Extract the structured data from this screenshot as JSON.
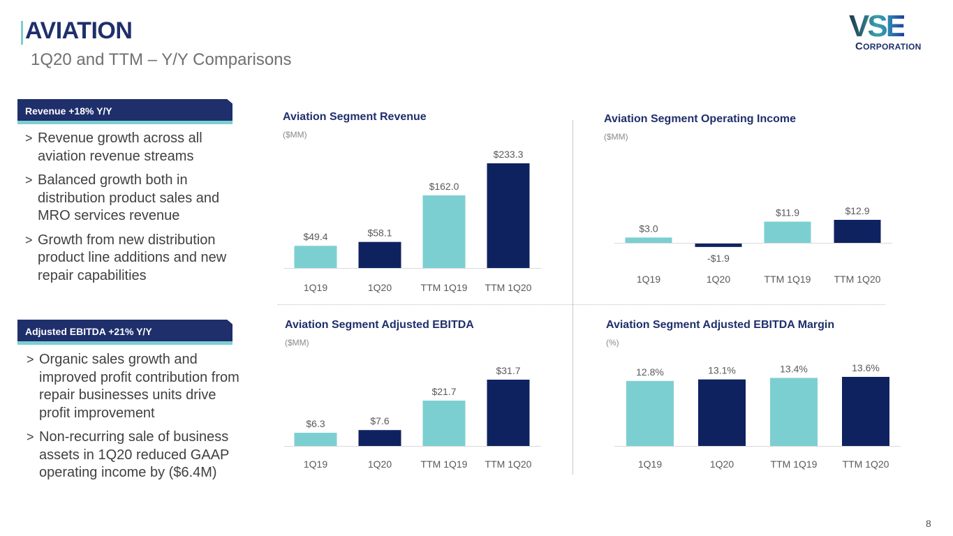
{
  "header": {
    "title": "AVIATION",
    "subtitle": "1Q20 and TTM – Y/Y Comparisons"
  },
  "logo": {
    "main": "VSE",
    "sub_first": "C",
    "sub_rest": "ORPORATION"
  },
  "colors": {
    "navy": "#1f2f6b",
    "bar_dark": "#0f2260",
    "bar_light": "#7ccfd1",
    "accent": "#7ccfd1"
  },
  "sections": [
    {
      "header": "Revenue +18% Y/Y",
      "bullets": [
        "Revenue growth across all aviation revenue streams",
        "Balanced growth both in distribution product sales and MRO services revenue",
        "Growth from new distribution product line additions and new repair capabilities"
      ]
    },
    {
      "header": "Adjusted EBITDA +21% Y/Y",
      "bullets": [
        "Organic sales growth and improved profit contribution from repair businesses units drive profit improvement",
        "Non-recurring sale of business assets in 1Q20 reduced GAAP operating income by ($6.4M)"
      ]
    }
  ],
  "bullet_marker": ">",
  "chart_data": [
    {
      "type": "bar",
      "title": "Aviation Segment Revenue",
      "unit": "($MM)",
      "categories": [
        "1Q19",
        "1Q20",
        "TTM 1Q19",
        "TTM 1Q20"
      ],
      "values": [
        49.4,
        58.1,
        162.0,
        233.3
      ],
      "labels": [
        "$49.4",
        "$58.1",
        "$162.0",
        "$233.3"
      ],
      "colors": [
        "light",
        "dark",
        "light",
        "dark"
      ],
      "xlabel": "",
      "ylabel": "",
      "ylim": [
        0,
        233.3
      ],
      "grid": false,
      "legend": "none"
    },
    {
      "type": "bar",
      "title": "Aviation Segment Operating Income",
      "unit": "($MM)",
      "categories": [
        "1Q19",
        "1Q20",
        "TTM 1Q19",
        "TTM 1Q20"
      ],
      "values": [
        3.0,
        -1.9,
        11.9,
        12.9
      ],
      "labels": [
        "$3.0",
        "-$1.9",
        "$11.9",
        "$12.9"
      ],
      "colors": [
        "light",
        "dark",
        "light",
        "dark"
      ],
      "xlabel": "",
      "ylabel": "",
      "ylim": [
        -1.9,
        12.9
      ],
      "grid": false,
      "legend": "none"
    },
    {
      "type": "bar",
      "title": "Aviation Segment Adjusted EBITDA",
      "unit": "($MM)",
      "categories": [
        "1Q19",
        "1Q20",
        "TTM 1Q19",
        "TTM 1Q20"
      ],
      "values": [
        6.3,
        7.6,
        21.7,
        31.7
      ],
      "labels": [
        "$6.3",
        "$7.6",
        "$21.7",
        "$31.7"
      ],
      "colors": [
        "light",
        "dark",
        "light",
        "dark"
      ],
      "xlabel": "",
      "ylabel": "",
      "ylim": [
        0,
        31.7
      ],
      "grid": false,
      "legend": "none"
    },
    {
      "type": "bar",
      "title": "Aviation Segment Adjusted EBITDA Margin",
      "unit": "(%)",
      "categories": [
        "1Q19",
        "1Q20",
        "TTM 1Q19",
        "TTM 1Q20"
      ],
      "values": [
        12.8,
        13.1,
        13.4,
        13.6
      ],
      "labels": [
        "12.8%",
        "13.1%",
        "13.4%",
        "13.6%"
      ],
      "colors": [
        "light",
        "dark",
        "light",
        "dark"
      ],
      "xlabel": "",
      "ylabel": "",
      "ylim": [
        0,
        13.6
      ],
      "grid": false,
      "legend": "none"
    }
  ],
  "footer": {
    "page_number": "8"
  }
}
